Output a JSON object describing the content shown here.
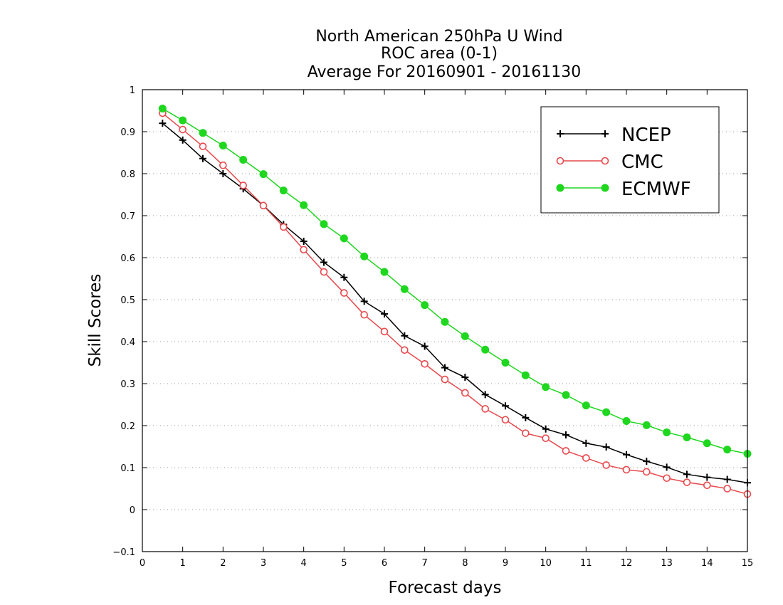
{
  "chart_data": {
    "type": "line",
    "title_lines": [
      "North American 250hPa U Wind",
      "ROC area (0-1)",
      "Average For 20160901 - 20161130"
    ],
    "xlabel": "Forecast days",
    "ylabel": "Skill Scores",
    "xlim": [
      0,
      15
    ],
    "ylim": [
      -0.1,
      1
    ],
    "xticks": [
      0,
      1,
      2,
      3,
      4,
      5,
      6,
      7,
      8,
      9,
      10,
      11,
      12,
      13,
      14,
      15
    ],
    "yticks": [
      -0.1,
      0,
      0.1,
      0.2,
      0.3,
      0.4,
      0.5,
      0.6,
      0.7,
      0.8,
      0.9,
      1
    ],
    "ytick_labels": [
      "−0.1",
      "0",
      "0.1",
      "0.2",
      "0.3",
      "0.4",
      "0.5",
      "0.6",
      "0.7",
      "0.8",
      "0.9",
      "1"
    ],
    "grid": "horizontal-dotted",
    "legend_position": "top-right",
    "x": [
      0.5,
      1,
      1.5,
      2,
      2.5,
      3,
      3.5,
      4,
      4.5,
      5,
      5.5,
      6,
      6.5,
      7,
      7.5,
      8,
      8.5,
      9,
      9.5,
      10,
      10.5,
      11,
      11.5,
      12,
      12.5,
      13,
      13.5,
      14,
      14.5,
      15
    ],
    "series": [
      {
        "name": "NCEP",
        "color": "#000000",
        "marker": "plus",
        "values": [
          0.92,
          0.88,
          0.836,
          0.8,
          0.764,
          0.724,
          0.679,
          0.639,
          0.589,
          0.553,
          0.496,
          0.466,
          0.414,
          0.389,
          0.338,
          0.315,
          0.274,
          0.247,
          0.219,
          0.192,
          0.178,
          0.158,
          0.149,
          0.131,
          0.115,
          0.101,
          0.084,
          0.077,
          0.072,
          0.064
        ]
      },
      {
        "name": "CMC",
        "color": "#e8484c",
        "marker": "open-circle",
        "values": [
          0.944,
          0.905,
          0.865,
          0.82,
          0.772,
          0.724,
          0.673,
          0.619,
          0.566,
          0.516,
          0.464,
          0.424,
          0.38,
          0.347,
          0.31,
          0.278,
          0.24,
          0.214,
          0.182,
          0.17,
          0.14,
          0.123,
          0.106,
          0.095,
          0.09,
          0.075,
          0.065,
          0.058,
          0.05,
          0.037
        ]
      },
      {
        "name": "ECMWF",
        "color": "#1ed71e",
        "marker": "filled-circle",
        "values": [
          0.955,
          0.927,
          0.897,
          0.867,
          0.833,
          0.799,
          0.76,
          0.725,
          0.68,
          0.646,
          0.603,
          0.566,
          0.525,
          0.487,
          0.447,
          0.413,
          0.381,
          0.35,
          0.32,
          0.292,
          0.273,
          0.248,
          0.232,
          0.211,
          0.201,
          0.184,
          0.172,
          0.158,
          0.143,
          0.133
        ]
      }
    ]
  }
}
